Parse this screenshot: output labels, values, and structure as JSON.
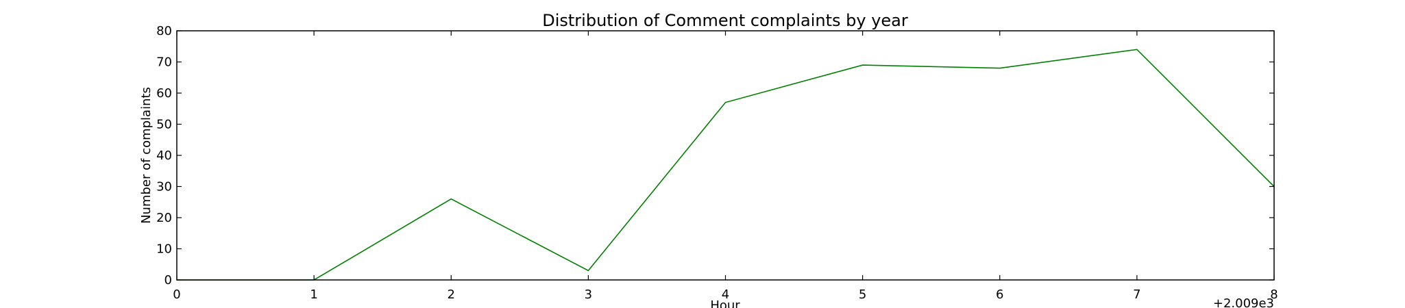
{
  "chart_data": {
    "type": "line",
    "title": "Distribution of  Comment complaints by year",
    "xlabel": "Hour",
    "ylabel": "Number of complaints",
    "x_offset_label": "+2.009e3",
    "xlim": [
      0,
      8
    ],
    "ylim": [
      0,
      80
    ],
    "x_ticks": [
      "0",
      "1",
      "2",
      "3",
      "4",
      "5",
      "6",
      "7",
      "8"
    ],
    "y_ticks": [
      "0",
      "10",
      "20",
      "30",
      "40",
      "50",
      "60",
      "70",
      "80"
    ],
    "grid": false,
    "legend": false,
    "series": [
      {
        "color": "#008000",
        "x": [
          0,
          1,
          2,
          3,
          4,
          5,
          6,
          7,
          8
        ],
        "values": [
          0,
          0,
          26,
          3,
          57,
          69,
          68,
          74,
          30
        ]
      }
    ]
  }
}
